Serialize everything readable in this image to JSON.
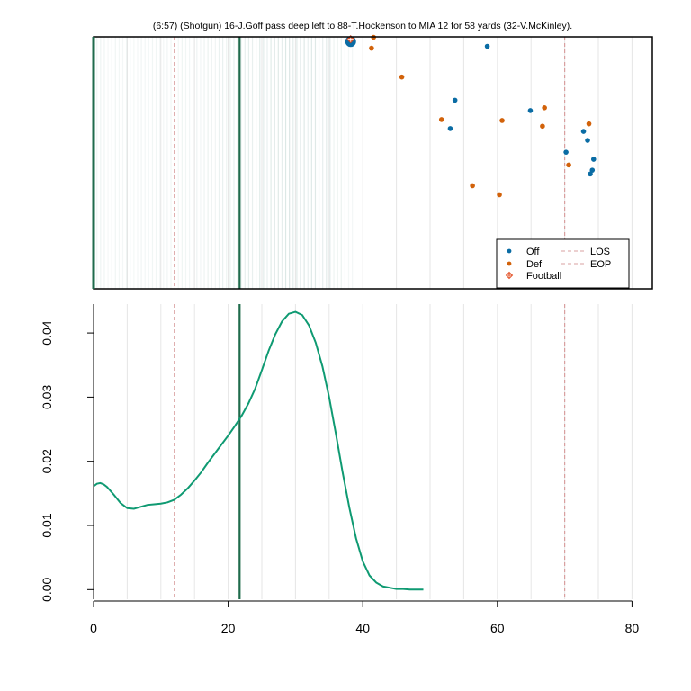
{
  "title": "(6:57) (Shotgun) 16-J.Goff pass deep left to 88-T.Hockenson to MIA 12 for 58 yards (32-V.McKinley).",
  "colors": {
    "offense": "#0a6ca4",
    "defense": "#d2620a",
    "football": "#e4572e",
    "density": "#0f9a72",
    "marker_line": "#1f6b4c",
    "dashed": "#d9a0a0",
    "grid": "#e6e6e6",
    "shading": "#3f7f73"
  },
  "chart_data": [
    {
      "type": "scatter",
      "name": "field",
      "xlim": [
        0,
        83
      ],
      "ylim": [
        0,
        53.3
      ],
      "grid": true,
      "vertical_lines": {
        "solid": 21.7,
        "dashed": [
          12,
          70
        ]
      },
      "shading_range": [
        0,
        38.5
      ],
      "highlight_point": {
        "x": 38.2,
        "y": 52.3
      },
      "football": {
        "x": 38.2,
        "y": 52.8
      },
      "offense": [
        {
          "x": 38.2,
          "y": 52.3
        },
        {
          "x": 58.5,
          "y": 51.3
        },
        {
          "x": 53.7,
          "y": 39.9
        },
        {
          "x": 53.0,
          "y": 33.9
        },
        {
          "x": 64.9,
          "y": 37.7
        },
        {
          "x": 72.8,
          "y": 33.3
        },
        {
          "x": 73.4,
          "y": 31.4
        },
        {
          "x": 70.2,
          "y": 28.9
        },
        {
          "x": 74.3,
          "y": 27.4
        },
        {
          "x": 74.1,
          "y": 25.1
        },
        {
          "x": 73.8,
          "y": 24.3
        }
      ],
      "defense": [
        {
          "x": 41.6,
          "y": 53.2
        },
        {
          "x": 41.3,
          "y": 50.9
        },
        {
          "x": 45.8,
          "y": 44.8
        },
        {
          "x": 51.7,
          "y": 35.8
        },
        {
          "x": 60.7,
          "y": 35.6
        },
        {
          "x": 67.0,
          "y": 38.3
        },
        {
          "x": 66.7,
          "y": 34.4
        },
        {
          "x": 73.6,
          "y": 34.9
        },
        {
          "x": 70.6,
          "y": 26.2
        },
        {
          "x": 56.3,
          "y": 21.8
        },
        {
          "x": 60.3,
          "y": 19.9
        }
      ],
      "legend": {
        "position": "bottom-right",
        "entries": {
          "off": "Off",
          "def": "Def",
          "football": "Football",
          "los": "LOS",
          "eop": "EOP"
        }
      }
    },
    {
      "type": "line",
      "name": "density",
      "xlim": [
        0,
        83
      ],
      "ylim": [
        -0.0015,
        0.0445
      ],
      "xticks": [
        0,
        20,
        40,
        60,
        80
      ],
      "yticks": [
        0.0,
        0.01,
        0.02,
        0.03,
        0.04
      ],
      "ytick_labels": [
        "0.00",
        "0.01",
        "0.02",
        "0.03",
        "0.04"
      ],
      "grid": true,
      "vertical_lines": {
        "solid": 21.7,
        "dashed": [
          12,
          70
        ]
      },
      "x": [
        0,
        0.5,
        1,
        1.5,
        2,
        3,
        4,
        5,
        6,
        7,
        8,
        9,
        10,
        11,
        12,
        13,
        14,
        15,
        16,
        17,
        18,
        19,
        20,
        21,
        22,
        23,
        24,
        25,
        26,
        27,
        28,
        29,
        30,
        31,
        32,
        33,
        34,
        35,
        36,
        37,
        38,
        39,
        40,
        41,
        42,
        43,
        44,
        45,
        46,
        47,
        48,
        49
      ],
      "y": [
        0.0161,
        0.0165,
        0.0166,
        0.0164,
        0.016,
        0.0148,
        0.0135,
        0.0127,
        0.0126,
        0.0129,
        0.0132,
        0.0133,
        0.0134,
        0.0136,
        0.014,
        0.0148,
        0.0158,
        0.017,
        0.0183,
        0.0198,
        0.0212,
        0.0226,
        0.024,
        0.0255,
        0.0271,
        0.029,
        0.0313,
        0.0342,
        0.0372,
        0.0398,
        0.0418,
        0.043,
        0.0433,
        0.0428,
        0.0412,
        0.0385,
        0.0348,
        0.03,
        0.0243,
        0.0183,
        0.0128,
        0.008,
        0.0044,
        0.0022,
        0.0011,
        0.0005,
        0.0003,
        0.0001,
        0.0001,
        0.0,
        0.0,
        0.0
      ]
    }
  ]
}
